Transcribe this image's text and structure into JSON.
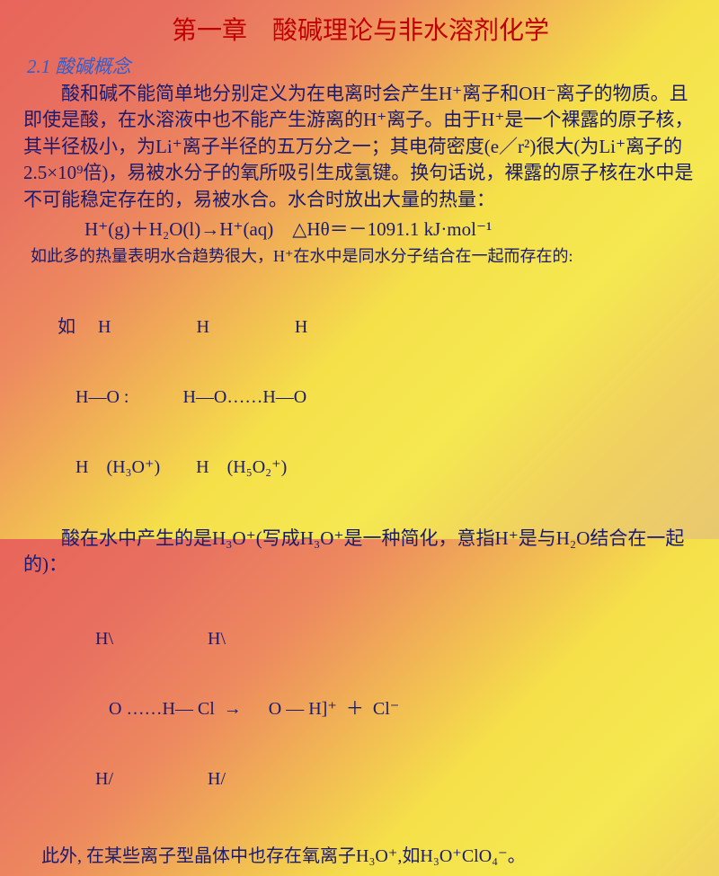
{
  "title": "第一章　酸碱理论与非水溶剂化学",
  "section": "2.1 酸碱概念",
  "para1": "酸和碱不能简单地分别定义为在电离时会产生H⁺离子和OH⁻离子的物质。且即使是酸，在水溶液中也不能产生游离的H⁺离子。由于H⁺是一个裸露的原子核，其半径极小，为Li⁺离子半径的五万分之一；其电荷密度(e／r²)很大(为Li⁺离子的2.5×10⁹倍)，易被水分子的氧所吸引生成氢键。换句话说，裸露的原子核在水中是不可能稳定存在的，易被水合。水合时放出大量的热量：",
  "eq1": "H⁺(g)＋H₂O(l)→H⁺(aq)　△Hθ＝－1091.1 kJ·mol⁻¹",
  "note1": "如此多的热量表明水合趋势很大，H⁺在水中是同水分子结合在一起而存在的:",
  "diag_line1": "如     H                   H                   H",
  "diag_line2": "    H—O :            H—O……H—O",
  "diag_line3": "    H    (H₃O⁺)        H    (H₅O₂⁺)",
  "para2": "　　酸在水中产生的是H₃O⁺(写成H₃O⁺是一种简化，意指H⁺是与H₂O结合在一起的)：",
  "react_line1": "H\\                     H\\",
  "react_line2": "   O ……H— Cl  →      O — H]⁺  ＋  Cl⁻",
  "react_line3": "H/                     H/",
  "footer": "此外, 在某些离子型晶体中也存在氧离子H₃O⁺,如H₃O⁺ClO₄⁻。",
  "colors": {
    "title": "#c00000",
    "section": "#2e5fd0",
    "body": "#1a1a6e",
    "bg_start": "#e8655a",
    "bg_end": "#f5e850"
  },
  "fonts": {
    "title_size": 28,
    "body_size": 21,
    "note_size": 18
  }
}
